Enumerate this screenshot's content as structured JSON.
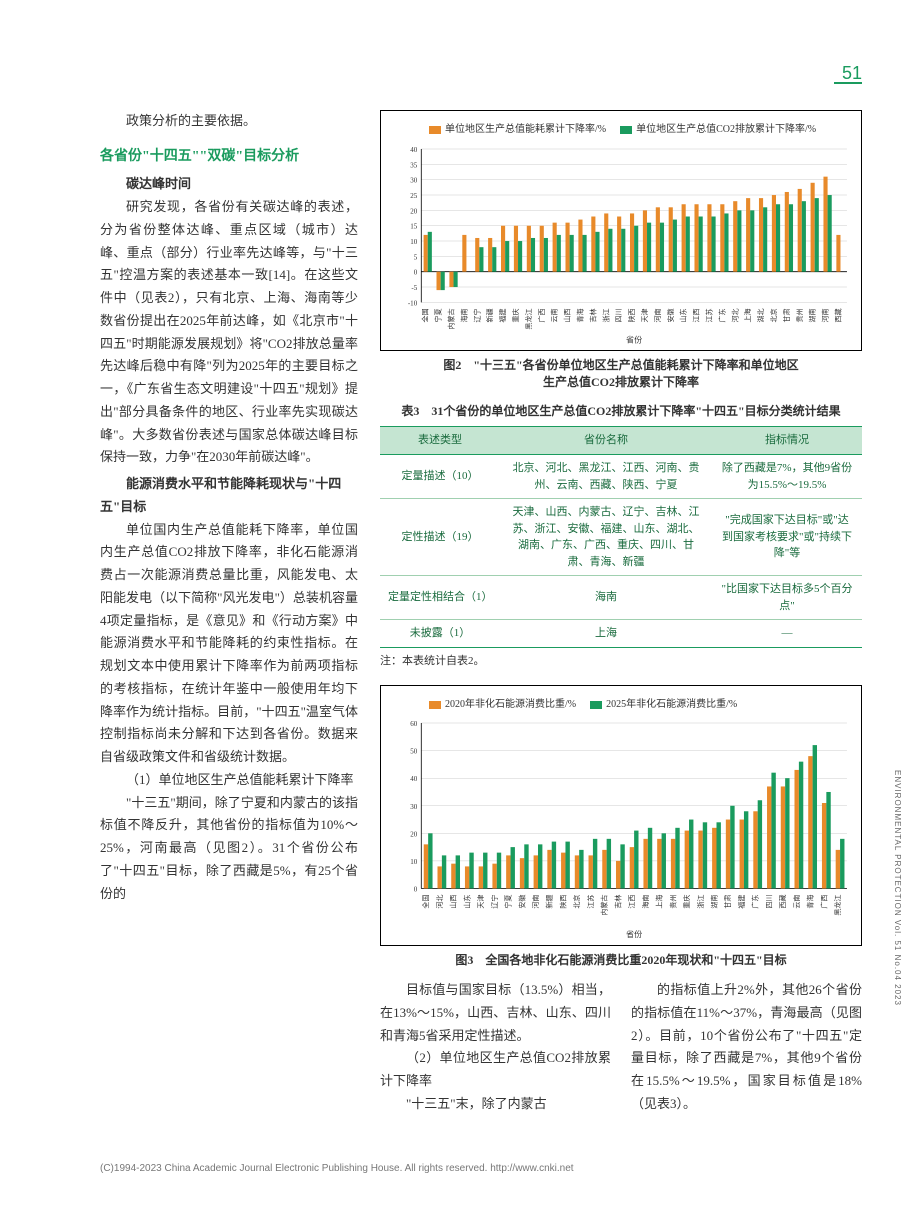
{
  "page_number": "51",
  "side_label": "ENVIRONMENTAL PROTECTION Vol. 51 No.04 2023",
  "footer_text": "(C)1994-2023 China Academic Journal Electronic Publishing House. All rights reserved.   http://www.cnki.net",
  "left": {
    "p0": "政策分析的主要依据。",
    "h1": "各省份\"十四五\"\"双碳\"目标分析",
    "sh1": "碳达峰时间",
    "p1": "研究发现，各省份有关碳达峰的表述，分为省份整体达峰、重点区域（城市）达峰、重点（部分）行业率先达峰等，与\"十三五\"控温方案的表述基本一致[14]。在这些文件中（见表2），只有北京、上海、海南等少数省份提出在2025年前达峰，如《北京市\"十四五\"时期能源发展规划》将\"CO2排放总量率先达峰后稳中有降\"列为2025年的主要目标之一，《广东省生态文明建设\"十四五\"规划》提出\"部分具备条件的地区、行业率先实现碳达峰\"。大多数省份表述与国家总体碳达峰目标保持一致，力争\"在2030年前碳达峰\"。",
    "sh2": "能源消费水平和节能降耗现状与\"十四五\"目标",
    "p2": "单位国内生产总值能耗下降率，单位国内生产总值CO2排放下降率，非化石能源消费占一次能源消费总量比重，风能发电、太阳能发电（以下简称\"风光发电\"）总装机容量4项定量指标，是《意见》和《行动方案》中能源消费水平和节能降耗的约束性指标。在规划文本中使用累计下降率作为前两项指标的考核指标，在统计年鉴中一般使用年均下降率作为统计指标。目前，\"十四五\"温室气体控制指标尚未分解和下达到各省份。数据来自省级政策文件和省级统计数据。",
    "p3_lead": "（1）单位地区生产总值能耗累计下降率",
    "p3": "\"十三五\"期间，除了宁夏和内蒙古的该指标值不降反升，其他省份的指标值为10%～25%，河南最高（见图2）。31个省份公布了\"十四五\"目标，除了西藏是5%，有25个省份的"
  },
  "chart2": {
    "caption_l1": "图2　\"十三五\"各省份单位地区生产总值能耗累计下降率和单位地区",
    "caption_l2": "生产总值CO2排放累计下降率",
    "legend": [
      {
        "color": "#e88a2a",
        "label": "单位地区生产总值能耗累计下降率/%"
      },
      {
        "color": "#1a9b5e",
        "label": "单位地区生产总值CO2排放累计下降率/%"
      }
    ],
    "ymin": -10,
    "ymax": 40,
    "ystep": 5,
    "xlabel": "省份",
    "categories": [
      "全国",
      "宁夏",
      "内蒙古",
      "海南",
      "辽宁",
      "新疆",
      "福建",
      "重庆",
      "黑龙江",
      "广西",
      "云南",
      "山西",
      "青海",
      "吉林",
      "浙江",
      "四川",
      "陕西",
      "天津",
      "河南",
      "安徽",
      "山东",
      "江西",
      "江苏",
      "广东",
      "河北",
      "上海",
      "湖北",
      "北京",
      "甘肃",
      "贵州",
      "湖南",
      "河南",
      "西藏"
    ],
    "series_orange": [
      12,
      -6,
      -5,
      12,
      11,
      11,
      15,
      15,
      15,
      15,
      16,
      16,
      17,
      18,
      19,
      18,
      19,
      20,
      21,
      21,
      22,
      22,
      22,
      22,
      23,
      24,
      24,
      25,
      26,
      27,
      29,
      31,
      12
    ],
    "series_green": [
      13,
      -6,
      -5,
      0,
      8,
      8,
      10,
      10,
      11,
      11,
      12,
      12,
      12,
      13,
      14,
      14,
      15,
      16,
      16,
      17,
      18,
      18,
      18,
      19,
      20,
      20,
      21,
      22,
      22,
      23,
      24,
      25,
      0
    ]
  },
  "table3": {
    "caption": "表3　31个省份的单位地区生产总值CO2排放累计下降率\"十四五\"目标分类统计结果",
    "headers": [
      "表述类型",
      "省份名称",
      "指标情况"
    ],
    "rows": [
      [
        "定量描述（10）",
        "北京、河北、黑龙江、江西、河南、贵州、云南、西藏、陕西、宁夏",
        "除了西藏是7%，其他9省份为15.5%～19.5%"
      ],
      [
        "定性描述（19）",
        "天津、山西、内蒙古、辽宁、吉林、江苏、浙江、安徽、福建、山东、湖北、湖南、广东、广西、重庆、四川、甘肃、青海、新疆",
        "\"完成国家下达目标\"或\"达到国家考核要求\"或\"持续下降\"等"
      ],
      [
        "定量定性相结合（1）",
        "海南",
        "\"比国家下达目标多5个百分点\""
      ],
      [
        "未披露（1）",
        "上海",
        "—"
      ]
    ],
    "note": "注：本表统计自表2。"
  },
  "chart3": {
    "caption": "图3　全国各地非化石能源消费比重2020年现状和\"十四五\"目标",
    "legend": [
      {
        "color": "#e88a2a",
        "label": "2020年非化石能源消费比重/%"
      },
      {
        "color": "#1a9b5e",
        "label": "2025年非化石能源消费比重/%"
      }
    ],
    "ymin": 0,
    "ymax": 60,
    "ystep": 10,
    "xlabel": "省份",
    "categories": [
      "全国",
      "河北",
      "山西",
      "山东",
      "天津",
      "辽宁",
      "宁夏",
      "安徽",
      "河南",
      "新疆",
      "陕西",
      "北京",
      "江苏",
      "内蒙古",
      "吉林",
      "江西",
      "海南",
      "上海",
      "贵州",
      "重庆",
      "浙江",
      "湖南",
      "甘肃",
      "福建",
      "广东",
      "四川",
      "西藏",
      "云南",
      "青海",
      "广西",
      "黑龙江"
    ],
    "series_orange": [
      16,
      8,
      9,
      8,
      8,
      9,
      12,
      11,
      12,
      14,
      13,
      12,
      12,
      14,
      10,
      15,
      18,
      18,
      18,
      21,
      21,
      22,
      25,
      25,
      28,
      37,
      37,
      43,
      48,
      31,
      14
    ],
    "series_green": [
      20,
      12,
      12,
      13,
      13,
      13,
      15,
      16,
      16,
      17,
      17,
      14,
      18,
      18,
      16,
      21,
      22,
      20,
      22,
      25,
      24,
      24,
      30,
      28,
      32,
      42,
      40,
      46,
      52,
      35,
      18
    ]
  },
  "bottom": {
    "c1a": "目标值与国家目标（13.5%）相当，在13%～15%，山西、吉林、山东、四川和青海5省采用定性描述。",
    "c1b_lead": "（2）单位地区生产总值CO2排放累计下降率",
    "c1b": "\"十三五\"末，除了内蒙古",
    "c2": "的指标值上升2%外，其他26个省份的指标值在11%～37%，青海最高（见图2）。目前，10个省份公布了\"十四五\"定量目标，除了西藏是7%，其他9个省份在15.5%～19.5%，国家目标值是18%（见表3）。"
  }
}
